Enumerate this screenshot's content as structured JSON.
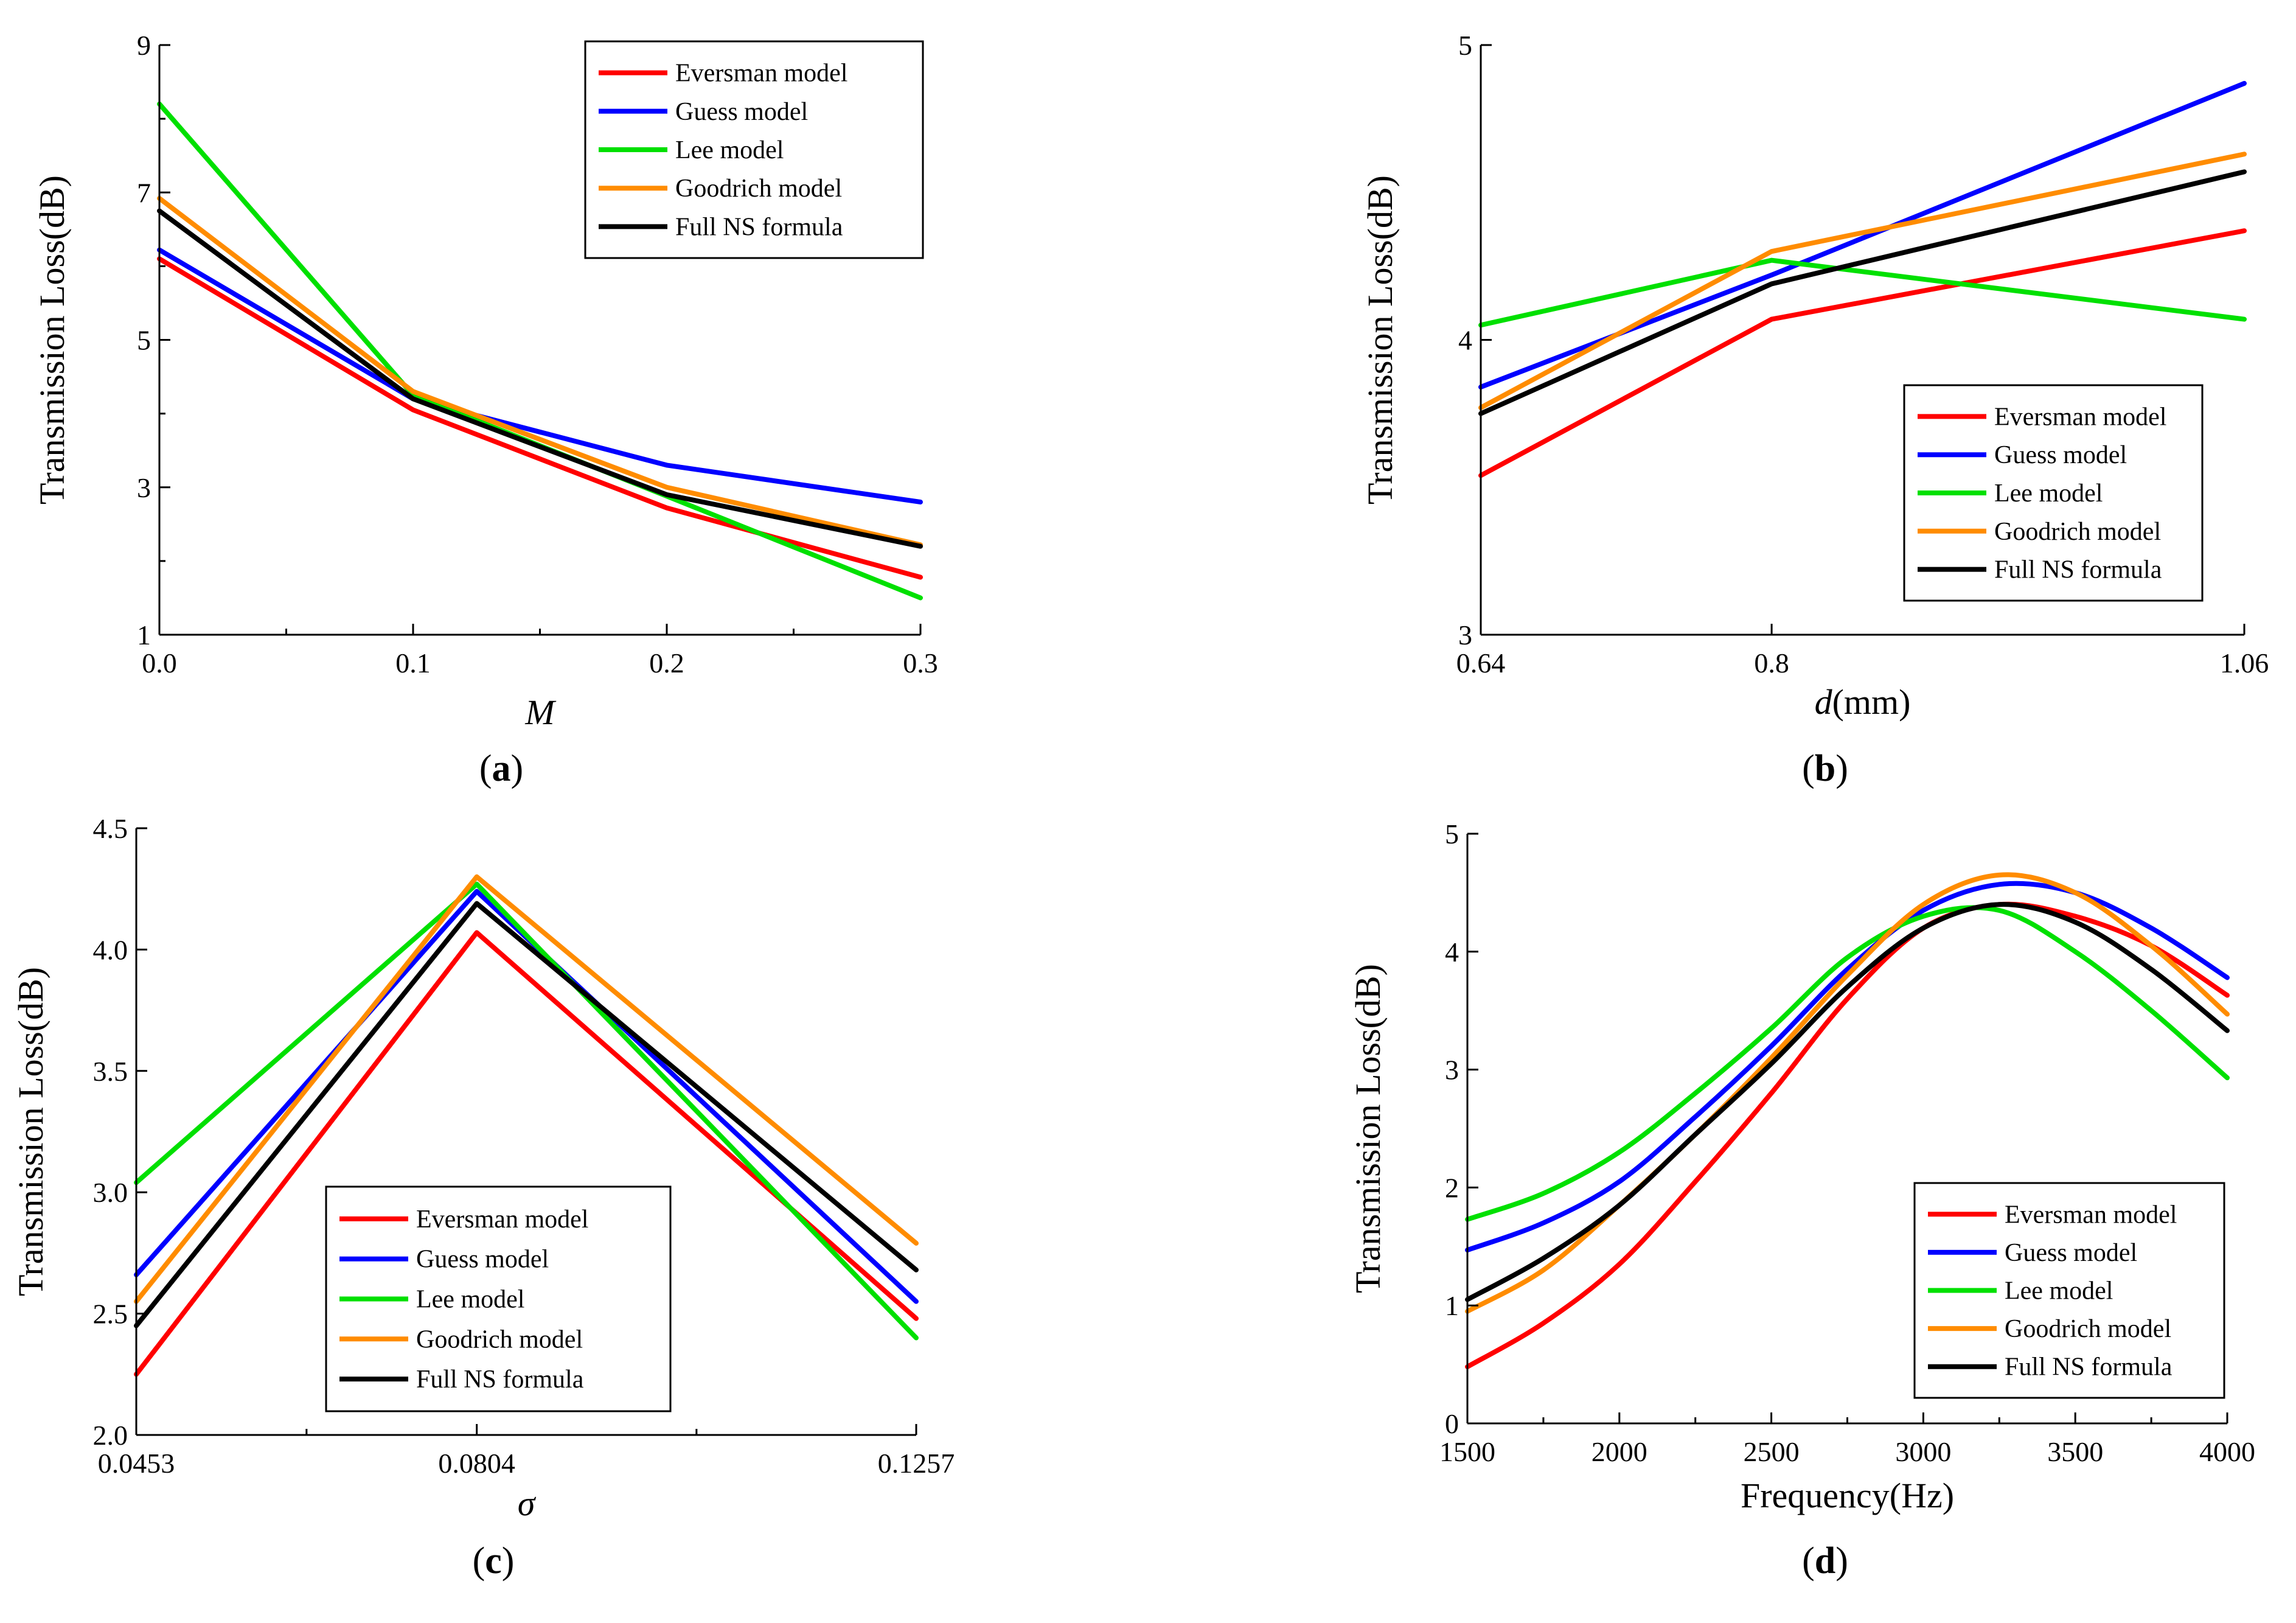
{
  "figure": {
    "series_colors": {
      "Eversman model": "#ff0000",
      "Guess model": "#0000ff",
      "Lee model": "#00e000",
      "Goodrich model": "#ff8c00",
      "Full NS formula": "#000000"
    }
  },
  "chart_data": [
    {
      "id": "a",
      "caption_open": "(",
      "caption_letter": "a",
      "caption_close": ")",
      "type": "line",
      "xlabel": "M",
      "ylabel": "Transmission Loss(dB)",
      "xlim": [
        0,
        0.3
      ],
      "ylim": [
        1,
        9
      ],
      "xticks": [
        0.0,
        0.1,
        0.2,
        0.3
      ],
      "xtick_labels": [
        "0.0",
        "0.1",
        "0.2",
        "0.3"
      ],
      "yticks": [
        1,
        3,
        5,
        7,
        9
      ],
      "ytick_labels": [
        "1",
        "3",
        "5",
        "7",
        "9"
      ],
      "legend_position": "top-right",
      "x": [
        0,
        0.1,
        0.2,
        0.3
      ],
      "series": [
        {
          "name": "Eversman model",
          "values": [
            6.1,
            4.05,
            2.72,
            1.78
          ]
        },
        {
          "name": "Guess model",
          "values": [
            6.22,
            4.2,
            3.3,
            2.8
          ]
        },
        {
          "name": "Lee model",
          "values": [
            8.2,
            4.25,
            2.88,
            1.5
          ]
        },
        {
          "name": "Goodrich model",
          "values": [
            6.92,
            4.3,
            3.0,
            2.22
          ]
        },
        {
          "name": "Full NS formula",
          "values": [
            6.75,
            4.2,
            2.9,
            2.2
          ]
        }
      ]
    },
    {
      "id": "b",
      "caption_open": "(",
      "caption_letter": "b",
      "caption_close": ")",
      "type": "line",
      "xlabel_italic": "d",
      "xlabel_rest": "(mm)",
      "ylabel": "Transmission Loss(dB)",
      "xlim": [
        0.64,
        1.06
      ],
      "ylim": [
        3,
        5
      ],
      "xticks": [
        0.64,
        0.8,
        1.06
      ],
      "xtick_labels": [
        "0.64",
        "0.8",
        "1.06"
      ],
      "yticks": [
        3,
        4,
        5
      ],
      "ytick_labels": [
        "3",
        "4",
        "5"
      ],
      "legend_position": "bottom-right",
      "x": [
        0.64,
        0.8,
        1.06
      ],
      "series": [
        {
          "name": "Eversman model",
          "values": [
            3.54,
            4.07,
            4.37
          ]
        },
        {
          "name": "Guess model",
          "values": [
            3.84,
            4.22,
            4.87
          ]
        },
        {
          "name": "Lee model",
          "values": [
            4.05,
            4.27,
            4.07
          ]
        },
        {
          "name": "Goodrich model",
          "values": [
            3.77,
            4.3,
            4.63
          ]
        },
        {
          "name": "Full NS formula",
          "values": [
            3.75,
            4.19,
            4.57
          ]
        }
      ]
    },
    {
      "id": "c",
      "caption_open": "(",
      "caption_letter": "c",
      "caption_close": ")",
      "type": "line",
      "xlabel": "σ",
      "ylabel": "Transmission Loss(dB)",
      "xlim": [
        0.0453,
        0.1257
      ],
      "ylim": [
        2.0,
        4.5
      ],
      "xticks": [
        0.0453,
        0.0804,
        0.1257
      ],
      "xtick_labels": [
        "0.0453",
        "0.0804",
        "0.1257"
      ],
      "yticks": [
        2.0,
        2.5,
        3.0,
        3.5,
        4.0,
        4.5
      ],
      "ytick_labels": [
        "2.0",
        "2.5",
        "3.0",
        "3.5",
        "4.0",
        "4.5"
      ],
      "legend_position": "bottom-center",
      "x": [
        0.0453,
        0.0804,
        0.1257
      ],
      "series": [
        {
          "name": "Eversman model",
          "values": [
            2.25,
            4.07,
            2.48
          ]
        },
        {
          "name": "Guess model",
          "values": [
            2.66,
            4.24,
            2.55
          ]
        },
        {
          "name": "Lee model",
          "values": [
            3.04,
            4.27,
            2.4
          ]
        },
        {
          "name": "Goodrich model",
          "values": [
            2.55,
            4.3,
            2.79
          ]
        },
        {
          "name": "Full NS formula",
          "values": [
            2.45,
            4.19,
            2.68
          ]
        }
      ]
    },
    {
      "id": "d",
      "caption_open": "(",
      "caption_letter": "d",
      "caption_close": ")",
      "type": "line",
      "xlabel": "Frequency(Hz)",
      "ylabel": "Transmission Loss(dB)",
      "xlim": [
        1500,
        4000
      ],
      "ylim": [
        0,
        5
      ],
      "xticks": [
        1500,
        2000,
        2500,
        3000,
        3500,
        4000
      ],
      "xtick_labels": [
        "1500",
        "2000",
        "2500",
        "3000",
        "3500",
        "4000"
      ],
      "yticks": [
        0,
        1,
        2,
        3,
        4,
        5
      ],
      "ytick_labels": [
        "0",
        "1",
        "2",
        "3",
        "4",
        "5"
      ],
      "legend_position": "bottom-right",
      "x": [
        1500,
        1750,
        2000,
        2250,
        2500,
        2750,
        3000,
        3250,
        3500,
        3750,
        4000
      ],
      "series": [
        {
          "name": "Eversman model",
          "values": [
            0.48,
            0.85,
            1.35,
            2.05,
            2.8,
            3.6,
            4.2,
            4.4,
            4.3,
            4.05,
            3.63
          ]
        },
        {
          "name": "Guess model",
          "values": [
            1.47,
            1.7,
            2.05,
            2.6,
            3.2,
            3.85,
            4.35,
            4.57,
            4.5,
            4.2,
            3.78
          ]
        },
        {
          "name": "Lee model",
          "values": [
            1.73,
            1.95,
            2.3,
            2.8,
            3.35,
            3.95,
            4.3,
            4.35,
            4.0,
            3.5,
            2.93
          ]
        },
        {
          "name": "Goodrich model",
          "values": [
            0.95,
            1.3,
            1.85,
            2.45,
            3.1,
            3.8,
            4.4,
            4.65,
            4.5,
            4.05,
            3.47
          ]
        },
        {
          "name": "Full NS formula",
          "values": [
            1.05,
            1.4,
            1.85,
            2.45,
            3.05,
            3.7,
            4.2,
            4.4,
            4.25,
            3.85,
            3.33
          ]
        }
      ]
    }
  ]
}
